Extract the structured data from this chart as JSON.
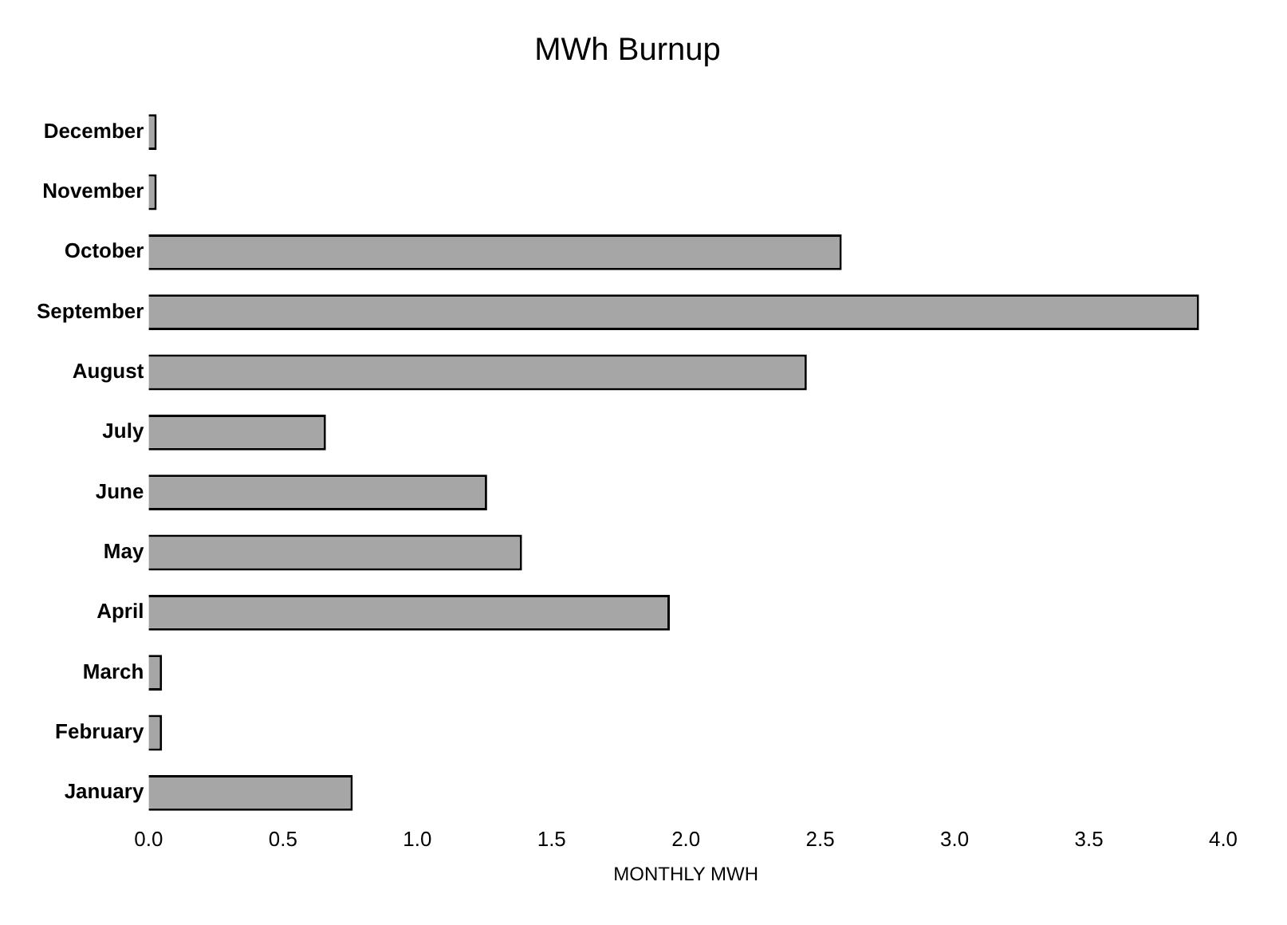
{
  "chart_data": {
    "type": "bar",
    "orientation": "horizontal",
    "title": "MWh Burnup",
    "xlabel": "MONTHLY MWH",
    "categories": [
      "December",
      "November",
      "October",
      "September",
      "August",
      "July",
      "June",
      "May",
      "April",
      "March",
      "February",
      "January"
    ],
    "values": [
      0.03,
      0.03,
      2.58,
      3.91,
      2.45,
      0.66,
      1.26,
      1.39,
      1.94,
      0.05,
      0.05,
      0.76
    ],
    "color": "#a6a6a6",
    "xlim": [
      0,
      4
    ],
    "xticks": [
      {
        "value": 0,
        "label": "0.0"
      },
      {
        "value": 0.5,
        "label": "0.5"
      },
      {
        "value": 1,
        "label": "1.0"
      },
      {
        "value": 1.5,
        "label": "1.5"
      },
      {
        "value": 2,
        "label": "2.0"
      },
      {
        "value": 2.5,
        "label": "2.5"
      },
      {
        "value": 3,
        "label": "3.0"
      },
      {
        "value": 3.5,
        "label": "3.5"
      },
      {
        "value": 4,
        "label": "4.0"
      }
    ],
    "grid": false,
    "legend": false
  }
}
